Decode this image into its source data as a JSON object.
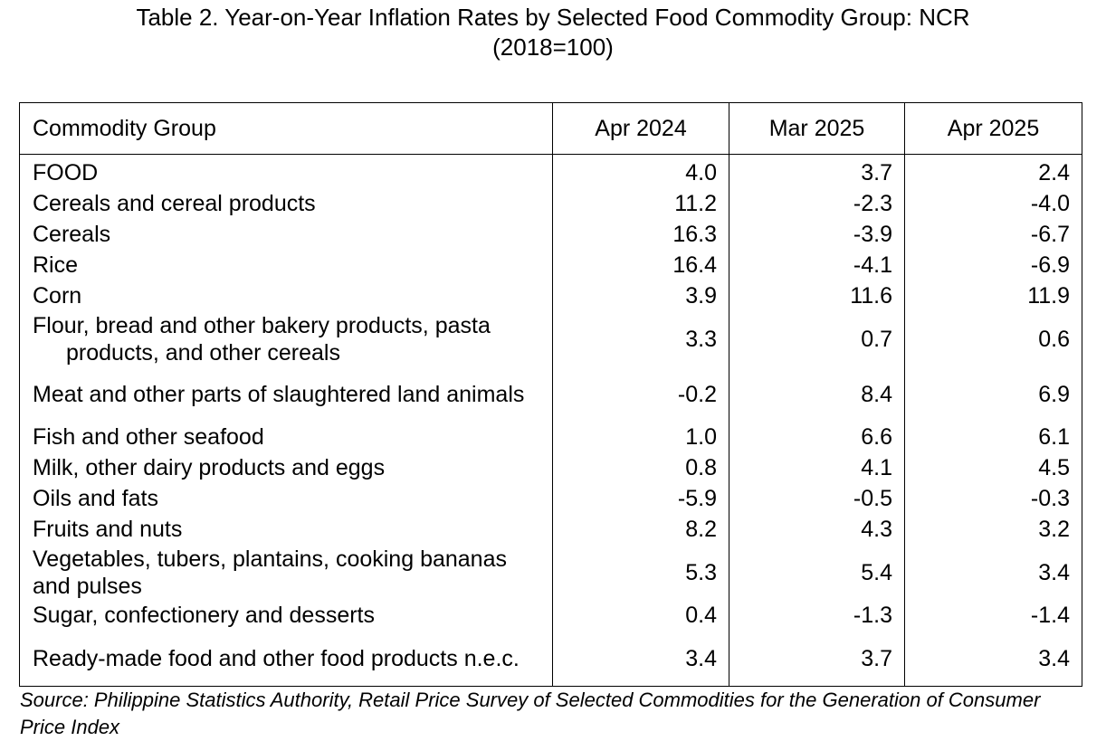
{
  "title": {
    "line1": "Table 2. Year-on-Year Inflation Rates by Selected Food Commodity Group: NCR",
    "line2": "(2018=100)"
  },
  "table": {
    "headers": [
      "Commodity Group",
      "Apr 2024",
      "Mar 2025",
      "Apr 2025"
    ],
    "rows": [
      {
        "name": "FOOD",
        "apr2024": "4.0",
        "mar2025": "3.7",
        "apr2025": "2.4"
      },
      {
        "name": "Cereals and cereal products",
        "apr2024": "11.2",
        "mar2025": "-2.3",
        "apr2025": "-4.0"
      },
      {
        "name": "Cereals",
        "apr2024": "16.3",
        "mar2025": "-3.9",
        "apr2025": "-6.7"
      },
      {
        "name": "Rice",
        "apr2024": "16.4",
        "mar2025": "-4.1",
        "apr2025": "-6.9"
      },
      {
        "name": "Corn",
        "apr2024": "3.9",
        "mar2025": "11.6",
        "apr2025": "11.9"
      },
      {
        "name": "Flour, bread and other bakery products, pasta products,  and other cereals",
        "apr2024": "3.3",
        "mar2025": "0.7",
        "apr2025": "0.6"
      },
      {
        "name": "Meat and other parts of slaughtered land animals",
        "apr2024": "-0.2",
        "mar2025": "8.4",
        "apr2025": "6.9"
      },
      {
        "name": "Fish and other seafood",
        "apr2024": "1.0",
        "mar2025": "6.6",
        "apr2025": "6.1"
      },
      {
        "name": "Milk, other dairy products and eggs",
        "apr2024": "0.8",
        "mar2025": "4.1",
        "apr2025": "4.5"
      },
      {
        "name": "Oils and fats",
        "apr2024": "-5.9",
        "mar2025": "-0.5",
        "apr2025": "-0.3"
      },
      {
        "name": "Fruits and nuts",
        "apr2024": "8.2",
        "mar2025": "4.3",
        "apr2025": "3.2"
      },
      {
        "name": "Vegetables, tubers, plantains, cooking bananas and pulses",
        "apr2024": "5.3",
        "mar2025": "5.4",
        "apr2025": "3.4"
      },
      {
        "name": "Sugar, confectionery and desserts",
        "apr2024": "0.4",
        "mar2025": "-1.3",
        "apr2025": "-1.4"
      },
      {
        "name": "Ready-made food and other food products n.e.c.",
        "apr2024": "3.4",
        "mar2025": "3.7",
        "apr2025": "3.4"
      }
    ]
  },
  "source": "Source: Philippine Statistics Authority, Retail Price Survey of Selected Commodities for the Generation of Consumer Price Index"
}
